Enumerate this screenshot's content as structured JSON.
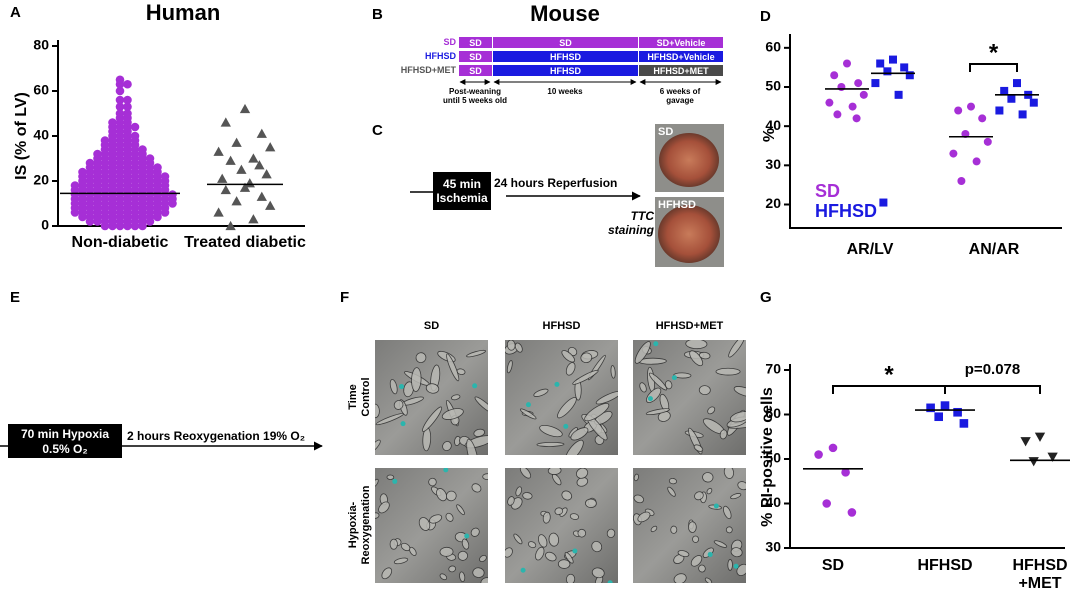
{
  "panel_labels": [
    "A",
    "B",
    "C",
    "D",
    "E",
    "F",
    "G"
  ],
  "chart_data": [
    {
      "type": "scatter",
      "title": "Human",
      "y_label": "IS (% of LV)",
      "categories": [
        "Non-diabetic",
        "Treated diabetic"
      ],
      "colors": [
        "#a62fd6",
        "#555555"
      ],
      "markers": [
        "circle",
        "triangle"
      ],
      "values": [
        [
          0,
          0,
          0,
          0,
          0,
          0,
          2,
          2,
          2,
          2,
          2,
          2,
          2,
          2,
          2,
          4,
          4,
          4,
          4,
          4,
          4,
          4,
          4,
          4,
          4,
          4,
          6,
          6,
          6,
          6,
          6,
          6,
          6,
          6,
          6,
          6,
          6,
          6,
          6,
          8,
          8,
          8,
          8,
          8,
          8,
          8,
          8,
          8,
          8,
          8,
          8,
          8,
          10,
          10,
          10,
          10,
          10,
          10,
          10,
          10,
          10,
          10,
          10,
          10,
          10,
          10,
          12,
          12,
          12,
          12,
          12,
          12,
          12,
          12,
          12,
          12,
          12,
          12,
          12,
          12,
          14,
          14,
          14,
          14,
          14,
          14,
          14,
          14,
          14,
          14,
          14,
          14,
          14,
          14,
          16,
          16,
          16,
          16,
          16,
          16,
          16,
          16,
          16,
          16,
          16,
          16,
          16,
          18,
          18,
          18,
          18,
          18,
          18,
          18,
          18,
          18,
          18,
          18,
          18,
          18,
          20,
          20,
          20,
          20,
          20,
          20,
          20,
          20,
          20,
          20,
          20,
          20,
          22,
          22,
          22,
          22,
          22,
          22,
          22,
          22,
          22,
          22,
          22,
          22,
          24,
          24,
          24,
          24,
          24,
          24,
          24,
          24,
          24,
          24,
          24,
          26,
          26,
          26,
          26,
          26,
          26,
          26,
          26,
          26,
          26,
          28,
          28,
          28,
          28,
          28,
          28,
          28,
          28,
          28,
          30,
          30,
          30,
          30,
          30,
          30,
          30,
          30,
          32,
          32,
          32,
          32,
          32,
          32,
          32,
          34,
          34,
          34,
          34,
          34,
          34,
          36,
          36,
          36,
          36,
          36,
          38,
          38,
          38,
          38,
          38,
          40,
          40,
          40,
          40,
          42,
          42,
          42,
          44,
          44,
          44,
          44,
          46,
          46,
          46,
          48,
          48,
          50,
          50,
          53,
          53,
          56,
          56,
          60,
          63,
          63,
          65
        ],
        [
          52,
          46,
          41,
          37,
          35,
          33,
          30,
          29,
          27,
          25,
          23,
          21,
          19,
          17,
          16,
          13,
          11,
          9,
          6,
          3,
          0
        ]
      ],
      "means": [
        14.5,
        18.5
      ],
      "ylim": [
        0,
        80
      ],
      "yticks": [
        0,
        20,
        40,
        60,
        80
      ],
      "grid": false
    },
    {
      "type": "scatter",
      "y_label": "%",
      "categories": [
        "AR/LV",
        "AN/AR"
      ],
      "series": [
        {
          "name": "SD",
          "color": "#a62fd6",
          "marker": "circle",
          "values": [
            [
              56,
              53,
              51,
              50,
              48,
              46,
              45,
              43,
              42
            ],
            [
              45,
              44,
              42,
              38,
              36,
              33,
              31,
              26
            ]
          ],
          "means": [
            49.5,
            37.3
          ]
        },
        {
          "name": "HFHSD",
          "color": "#1a1ae0",
          "marker": "square",
          "values": [
            [
              57,
              56,
              55,
              54,
              53,
              51,
              48,
              20.5
            ],
            [
              51,
              49,
              48,
              47,
              46,
              44,
              43
            ]
          ],
          "means": [
            53.5,
            48
          ]
        }
      ],
      "annotations": [
        "*"
      ],
      "legend": "lower left",
      "ylim": [
        14,
        62
      ],
      "yticks": [
        20,
        30,
        40,
        50,
        60
      ],
      "grid": false
    },
    {
      "type": "scatter",
      "y_label": "% PI-positive cells",
      "categories": [
        "SD",
        "HFHSD",
        "HFHSD +MET"
      ],
      "colors": [
        "#a62fd6",
        "#1a1ae0",
        "#222222"
      ],
      "markers": [
        "circle",
        "square",
        "triangle-down"
      ],
      "values": [
        [
          52.5,
          51,
          47,
          40,
          38
        ],
        [
          62,
          61.5,
          60.5,
          59.5,
          58
        ],
        [
          55,
          54,
          50.5,
          49.5
        ]
      ],
      "means": [
        47.8,
        61,
        49.7
      ],
      "annotations": [
        "*",
        "p=0.078"
      ],
      "ylim": [
        30,
        70
      ],
      "yticks": [
        30,
        40,
        50,
        60,
        70
      ],
      "grid": false
    }
  ],
  "mouse_protocol": {
    "title": "Mouse",
    "groups": [
      {
        "label": "SD",
        "segments": [
          "SD",
          "SD",
          "SD+Vehicle"
        ]
      },
      {
        "label": "HFHSD",
        "segments": [
          "SD",
          "HFHSD",
          "HFHSD+Vehicle"
        ]
      },
      {
        "label": "HFHSD+MET",
        "segments": [
          "SD",
          "HFHSD",
          "HFHSD+MET"
        ]
      }
    ],
    "periods": [
      "Post-weaning until 5 weeks old",
      "10 weeks",
      "6 weeks of gavage"
    ]
  },
  "ischemia_protocol": {
    "ischemia": "45 min Ischemia",
    "reperfusion": "24 hours Reperfusion",
    "staining": "TTC staining",
    "images": [
      "SD",
      "HFHSD"
    ]
  },
  "hypoxia_protocol": {
    "hypoxia": [
      "70 min Hypoxia",
      "0.5% O₂"
    ],
    "reoxygenation": "2 hours Reoxygenation 19% O₂"
  },
  "micrographs": {
    "columns": [
      "SD",
      "HFHSD",
      "HFHSD+MET"
    ],
    "rows": [
      "Time Control",
      "Hypoxia-Reoxygenation"
    ]
  }
}
